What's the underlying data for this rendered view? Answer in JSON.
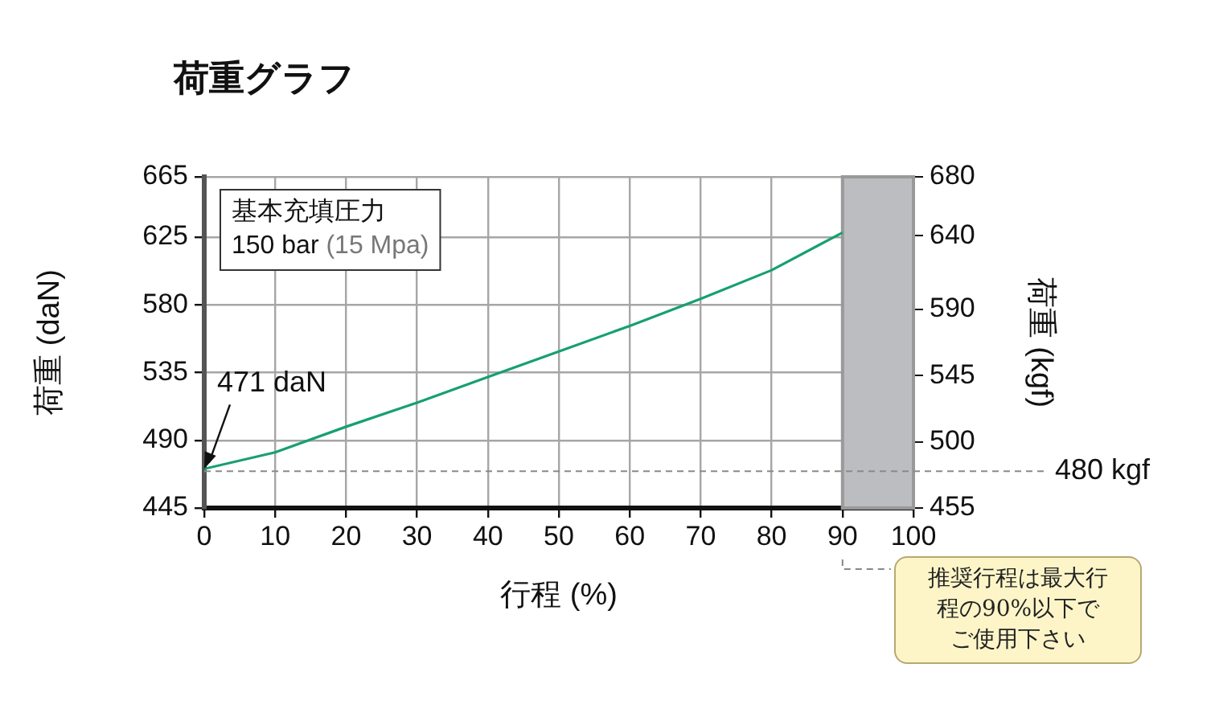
{
  "chart_data": {
    "type": "line",
    "title": "荷重グラフ",
    "xlabel": "行程 (%)",
    "ylabel": "荷重 (daN)",
    "y2label": "荷重 (kgf)",
    "x": [
      0,
      10,
      20,
      30,
      40,
      50,
      60,
      70,
      80,
      90
    ],
    "series": [
      {
        "color": "#17a06e",
        "values": [
          471,
          482,
          499,
          515,
          532,
          549,
          566,
          584,
          603,
          628
        ]
      }
    ],
    "xlim": [
      0,
      100
    ],
    "xticks": [
      0,
      10,
      20,
      30,
      40,
      50,
      60,
      70,
      80,
      90,
      100
    ],
    "ylim": [
      445,
      665
    ],
    "yticks": [
      445,
      490,
      535,
      580,
      625,
      665
    ],
    "y2lim": [
      455,
      680
    ],
    "y2ticks": [
      455,
      500,
      545,
      590,
      640,
      680
    ],
    "ref_lines": [
      {
        "axis": "y2",
        "value": 480,
        "label": "480 kgf",
        "color": "#8a8a8a",
        "line_style": "dashed"
      }
    ],
    "bands": [
      {
        "axis": "x",
        "from": 90,
        "to": 100,
        "color": "#bcbdc0"
      }
    ],
    "annotations": [
      "基本充填圧力",
      "150 bar (15 Mpa)",
      {
        "text": "471 daN",
        "x": 0,
        "y": 471
      },
      "推奨行程は最大行程の90%以下でご使用下さい"
    ],
    "grid": true,
    "legend": false,
    "marker": "none",
    "line_style": "solid"
  }
}
